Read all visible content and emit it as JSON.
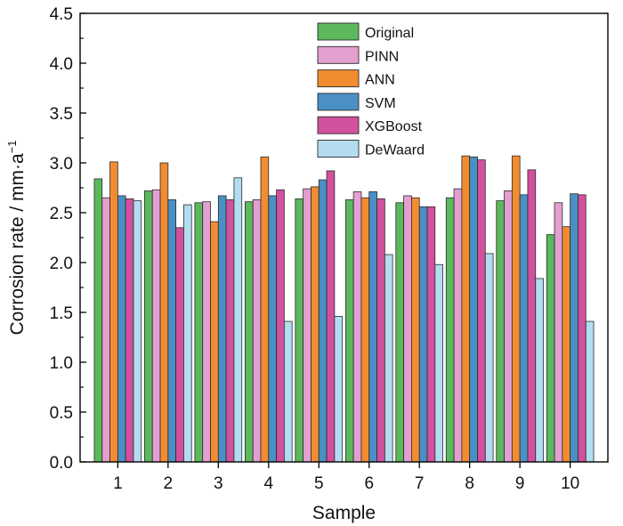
{
  "chart_data": {
    "type": "bar",
    "xlabel": "Sample",
    "ylabel": {
      "main": "Corrosion rate / mm·a",
      "superscript": "−1"
    },
    "ylim": [
      0,
      4.5
    ],
    "yticks": [
      "0.0",
      "0.5",
      "1.0",
      "1.5",
      "2.0",
      "2.5",
      "3.0",
      "3.5",
      "4.0",
      "4.5"
    ],
    "categories": [
      "1",
      "2",
      "3",
      "4",
      "5",
      "6",
      "7",
      "8",
      "9",
      "10"
    ],
    "legend_position": "top-right",
    "series": [
      {
        "name": "Original",
        "color": "#5cb85c",
        "values": [
          2.84,
          2.72,
          2.6,
          2.61,
          2.64,
          2.63,
          2.6,
          2.65,
          2.62,
          2.28
        ]
      },
      {
        "name": "PINN",
        "color": "#e39fd0",
        "values": [
          2.65,
          2.73,
          2.61,
          2.63,
          2.74,
          2.71,
          2.67,
          2.74,
          2.72,
          2.6
        ]
      },
      {
        "name": "ANN",
        "color": "#f28c30",
        "values": [
          3.01,
          3.0,
          2.41,
          3.06,
          2.76,
          2.65,
          2.65,
          3.07,
          3.07,
          2.36
        ]
      },
      {
        "name": "SVM",
        "color": "#4a90c4",
        "values": [
          2.67,
          2.63,
          2.67,
          2.67,
          2.83,
          2.71,
          2.56,
          3.06,
          2.68,
          2.69
        ]
      },
      {
        "name": "XGBoost",
        "color": "#d2519e",
        "values": [
          2.64,
          2.35,
          2.63,
          2.73,
          2.92,
          2.64,
          2.56,
          3.03,
          2.93,
          2.68
        ]
      },
      {
        "name": "DeWaard",
        "color": "#b3dcf0",
        "values": [
          2.62,
          2.58,
          2.85,
          1.41,
          1.46,
          2.08,
          1.98,
          2.09,
          1.84,
          1.41
        ]
      }
    ]
  }
}
